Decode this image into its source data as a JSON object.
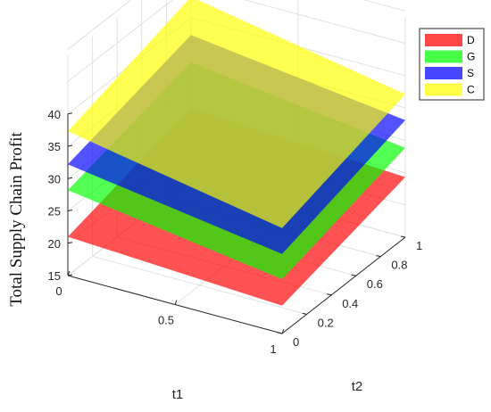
{
  "chart_data": {
    "type": "surface3d",
    "title": "",
    "xlabel": "t1",
    "ylabel": "t2",
    "zlabel": "Total Supply Chain Profit",
    "xlim": [
      0,
      1
    ],
    "ylim": [
      0,
      1
    ],
    "zlim": [
      15,
      40
    ],
    "x_ticks": [
      "0",
      "0.5",
      "1"
    ],
    "y_ticks": [
      "0",
      "0.2",
      "0.4",
      "0.6",
      "0.8",
      "1"
    ],
    "z_ticks": [
      "15",
      "20",
      "25",
      "30",
      "35",
      "40"
    ],
    "grid": true,
    "legend_position": "top-right",
    "series": [
      {
        "name": "D",
        "color": "#ff0000",
        "corners": {
          "x0y0": 21.0,
          "x1y0": 19.3,
          "x0y1": 26.1,
          "x1y1": 24.3
        }
      },
      {
        "name": "G",
        "color": "#00ff00",
        "corners": {
          "x0y0": 28.2,
          "x1y0": 23.4,
          "x0y1": 33.1,
          "x1y1": 28.8
        }
      },
      {
        "name": "S",
        "color": "#0000ff",
        "corners": {
          "x0y0": 32.2,
          "x1y0": 27.3,
          "x0y1": 37.3,
          "x1y1": 33.1
        }
      },
      {
        "name": "C",
        "color": "#ffff00",
        "corners": {
          "x0y0": 37.3,
          "x1y0": 31.3,
          "x0y1": 43.2,
          "x1y1": 37.1
        }
      }
    ]
  }
}
